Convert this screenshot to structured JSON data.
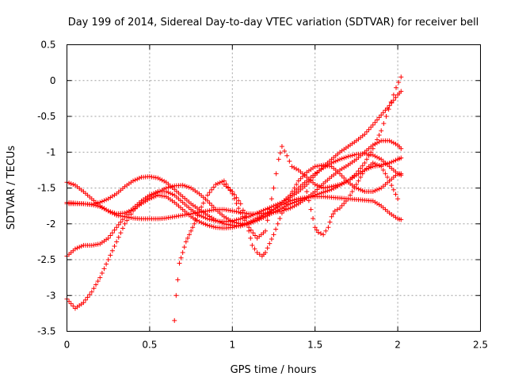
{
  "chart_data": {
    "type": "scatter",
    "title": "Day 199 of 2014, Sidereal Day-to-day VTEC variation (SDTVAR) for receiver bell",
    "xlabel": "GPS time / hours",
    "ylabel": "SDTVAR / TECUs",
    "xlim": [
      0,
      2.5
    ],
    "ylim": [
      -3.5,
      0.5
    ],
    "xticks": [
      0,
      0.5,
      1,
      1.5,
      2,
      2.5
    ],
    "xtick_labels": [
      "0",
      "0.5",
      "1",
      "1.5",
      "2",
      "2.5"
    ],
    "yticks": [
      -3.5,
      -3,
      -2.5,
      -2,
      -1.5,
      -1,
      -0.5,
      0,
      0.5
    ],
    "ytick_labels": [
      "-3.5",
      "-3",
      "-2.5",
      "-2",
      "-1.5",
      "-1",
      "-0.5",
      "0",
      "0.5"
    ],
    "grid": true,
    "marker": "plus",
    "marker_color": "#ff0000",
    "series": [
      {
        "x": [
          0.0,
          0.05,
          0.1,
          0.15,
          0.2,
          0.25,
          0.3,
          0.35,
          0.4,
          0.45,
          0.5,
          0.55,
          0.6,
          0.65,
          0.7,
          0.75,
          0.8,
          0.85,
          0.9,
          0.95,
          1.0,
          1.05,
          1.1,
          1.15,
          1.2,
          1.25,
          1.3,
          1.35,
          1.4,
          1.45,
          1.5,
          1.55,
          1.6,
          1.65,
          1.7,
          1.75,
          1.8,
          1.85,
          1.9,
          1.95,
          2.0,
          2.02
        ],
        "y": [
          -1.42,
          -1.46,
          -1.55,
          -1.65,
          -1.75,
          -1.82,
          -1.86,
          -1.85,
          -1.8,
          -1.72,
          -1.65,
          -1.6,
          -1.62,
          -1.7,
          -1.8,
          -1.9,
          -1.97,
          -2.02,
          -2.05,
          -2.06,
          -2.05,
          -2.02,
          -1.98,
          -1.92,
          -1.86,
          -1.8,
          -1.73,
          -1.68,
          -1.65,
          -1.63,
          -1.62,
          -1.62,
          -1.63,
          -1.64,
          -1.65,
          -1.66,
          -1.67,
          -1.68,
          -1.75,
          -1.85,
          -1.93,
          -1.94
        ]
      },
      {
        "x": [
          0.0,
          0.05,
          0.1,
          0.15,
          0.2,
          0.25,
          0.3,
          0.35,
          0.4,
          0.45,
          0.5,
          0.55,
          0.6,
          0.65,
          0.7,
          0.75,
          0.8,
          0.85,
          0.9,
          0.95,
          1.0,
          1.05,
          1.1,
          1.15,
          1.2,
          1.25,
          1.3,
          1.35,
          1.4,
          1.45,
          1.5,
          1.55,
          1.6,
          1.65,
          1.7,
          1.75,
          1.8,
          1.85,
          1.9,
          1.95,
          2.0,
          2.02
        ],
        "y": [
          -1.7,
          -1.71,
          -1.72,
          -1.73,
          -1.7,
          -1.65,
          -1.58,
          -1.48,
          -1.4,
          -1.35,
          -1.34,
          -1.36,
          -1.42,
          -1.52,
          -1.62,
          -1.72,
          -1.8,
          -1.88,
          -1.95,
          -2.0,
          -2.02,
          -2.03,
          -2.0,
          -1.95,
          -1.88,
          -1.8,
          -1.7,
          -1.6,
          -1.5,
          -1.4,
          -1.3,
          -1.22,
          -1.15,
          -1.1,
          -1.06,
          -1.03,
          -1.02,
          -1.04,
          -1.1,
          -1.2,
          -1.3,
          -1.32
        ]
      },
      {
        "x": [
          0.0,
          0.05,
          0.1,
          0.15,
          0.2,
          0.25,
          0.3,
          0.35,
          0.4,
          0.45,
          0.5,
          0.55,
          0.6,
          0.65,
          0.7,
          0.75,
          0.8,
          0.85,
          0.9,
          0.95,
          1.0,
          1.05,
          1.1,
          1.15,
          1.2,
          1.25,
          1.3,
          1.35,
          1.4,
          1.45,
          1.5,
          1.55,
          1.6,
          1.65,
          1.7,
          1.75,
          1.8,
          1.85,
          1.9,
          1.95,
          2.0,
          2.02
        ],
        "y": [
          -2.45,
          -2.35,
          -2.3,
          -2.3,
          -2.28,
          -2.2,
          -2.05,
          -1.9,
          -1.78,
          -1.68,
          -1.6,
          -1.55,
          -1.55,
          -1.6,
          -1.7,
          -1.8,
          -1.88,
          -1.93,
          -1.96,
          -1.97,
          -1.96,
          -1.93,
          -1.9,
          -1.85,
          -1.8,
          -1.75,
          -1.7,
          -1.63,
          -1.55,
          -1.45,
          -1.32,
          -1.2,
          -1.1,
          -1.0,
          -0.92,
          -0.84,
          -0.75,
          -0.62,
          -0.48,
          -0.35,
          -0.2,
          -0.15
        ]
      },
      {
        "x": [
          0.0,
          0.05,
          0.1,
          0.15,
          0.2,
          0.25,
          0.3,
          0.35,
          0.4,
          0.45,
          0.5,
          0.55,
          0.6,
          0.65,
          0.7,
          0.75,
          0.8,
          0.85,
          0.9,
          0.95,
          1.0,
          1.05,
          1.1,
          1.15,
          1.2,
          1.25,
          1.3,
          1.35,
          1.4,
          1.45,
          1.5,
          1.55,
          1.6,
          1.65,
          1.7,
          1.75,
          1.8,
          1.85,
          1.9,
          1.95,
          2.0,
          2.02
        ],
        "y": [
          -3.05,
          -3.18,
          -3.1,
          -2.95,
          -2.75,
          -2.5,
          -2.25,
          -2.0,
          -1.82,
          -1.7,
          -1.62,
          -1.56,
          -1.5,
          -1.47,
          -1.46,
          -1.5,
          -1.58,
          -1.68,
          -1.8,
          -1.9,
          -1.97,
          -2.0,
          -1.99,
          -1.95,
          -1.9,
          -1.84,
          -1.78,
          -1.72,
          -1.68,
          -1.64,
          -1.6,
          -1.56,
          -1.52,
          -1.46,
          -1.4,
          -1.32,
          -1.25,
          -1.2,
          -1.18,
          -1.15,
          -1.1,
          -1.08
        ]
      },
      {
        "x": [
          0.0,
          0.05,
          0.1,
          0.15,
          0.2,
          0.25,
          0.3,
          0.35,
          0.4,
          0.45,
          0.5,
          0.55,
          0.6,
          0.65,
          0.7,
          0.75,
          0.8,
          0.85,
          0.9,
          0.95,
          1.0,
          1.05,
          1.1,
          1.15,
          1.2,
          1.25,
          1.3,
          1.35,
          1.4,
          1.45,
          1.5,
          1.55,
          1.6,
          1.65,
          1.7,
          1.75,
          1.8,
          1.85,
          1.9,
          1.95,
          2.0,
          2.02
        ],
        "y": [
          -1.72,
          -1.72,
          -1.72,
          -1.73,
          -1.76,
          -1.82,
          -1.88,
          -1.9,
          -1.92,
          -1.93,
          -1.93,
          -1.93,
          -1.92,
          -1.9,
          -1.88,
          -1.86,
          -1.84,
          -1.82,
          -1.8,
          -1.8,
          -1.82,
          -1.84,
          -1.86,
          -1.86,
          -1.85,
          -1.84,
          -1.82,
          -1.78,
          -1.72,
          -1.64,
          -1.55,
          -1.44,
          -1.34,
          -1.25,
          -1.18,
          -1.1,
          -1.0,
          -0.9,
          -0.84,
          -0.84,
          -0.9,
          -0.95
        ]
      },
      {
        "x": [
          0.65,
          0.66,
          0.67,
          0.68,
          0.7,
          0.72,
          0.74,
          0.76,
          0.78,
          0.8,
          0.85,
          0.9,
          0.95,
          1.0,
          1.05,
          1.1,
          1.15,
          1.2,
          1.25,
          1.28,
          1.3,
          1.33,
          1.36,
          1.4,
          1.45,
          1.5,
          1.55,
          1.6,
          1.65,
          1.7,
          1.75,
          1.8,
          1.85,
          1.9,
          1.93,
          1.96,
          1.99,
          2.02
        ],
        "y": [
          -3.35,
          -3.0,
          -2.78,
          -2.55,
          -2.4,
          -2.25,
          -2.15,
          -2.05,
          -1.95,
          -1.82,
          -1.6,
          -1.45,
          -1.4,
          -1.58,
          -1.85,
          -2.05,
          -2.2,
          -2.1,
          -1.5,
          -1.1,
          -0.92,
          -1.05,
          -1.2,
          -1.25,
          -1.35,
          -1.45,
          -1.5,
          -1.48,
          -1.45,
          -1.4,
          -1.3,
          -1.15,
          -0.95,
          -0.7,
          -0.5,
          -0.3,
          -0.1,
          0.05
        ]
      },
      {
        "x": [
          0.95,
          1.0,
          1.05,
          1.08,
          1.1,
          1.12,
          1.15,
          1.18,
          1.2,
          1.25,
          1.3,
          1.35,
          1.4,
          1.45,
          1.5,
          1.55,
          1.6,
          1.65,
          1.7,
          1.75,
          1.8,
          1.85,
          1.9,
          1.95,
          2.0,
          2.02
        ],
        "y": [
          -1.45,
          -1.55,
          -1.72,
          -1.9,
          -2.1,
          -2.3,
          -2.4,
          -2.45,
          -2.4,
          -2.15,
          -1.85,
          -1.6,
          -1.4,
          -1.28,
          -1.2,
          -1.18,
          -1.2,
          -1.3,
          -1.42,
          -1.5,
          -1.55,
          -1.55,
          -1.5,
          -1.4,
          -1.3,
          -1.3
        ]
      },
      {
        "x": [
          1.45,
          1.5,
          1.52,
          1.55,
          1.58,
          1.6,
          1.62,
          1.65,
          1.7,
          1.75,
          1.8,
          1.85,
          1.9,
          1.95,
          2.0
        ],
        "y": [
          -1.55,
          -2.05,
          -2.12,
          -2.15,
          -2.05,
          -1.9,
          -1.82,
          -1.78,
          -1.65,
          -1.45,
          -1.25,
          -1.15,
          -1.2,
          -1.4,
          -1.65
        ]
      }
    ]
  }
}
